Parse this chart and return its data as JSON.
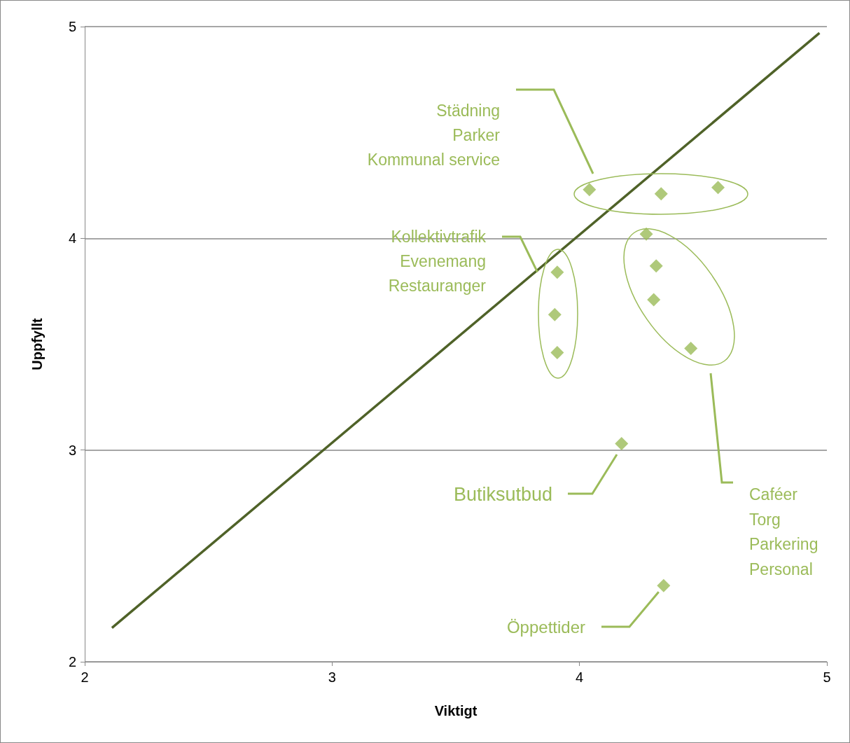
{
  "chart_data": {
    "type": "scatter",
    "xlabel": "Viktigt",
    "ylabel": "Uppfyllt",
    "xlim": [
      2,
      5
    ],
    "xticks": [
      2,
      3,
      4,
      5
    ],
    "ylim": [
      2,
      5
    ],
    "yticks": [
      2,
      3,
      4,
      5
    ],
    "grid": "y",
    "marker": "diamond",
    "series": [
      {
        "color": "#9bbb59",
        "x": [
          4.04,
          4.33,
          4.56,
          4.27,
          4.31,
          4.3,
          4.45,
          3.91,
          3.9,
          3.91,
          4.17,
          4.34
        ],
        "values": [
          4.23,
          4.21,
          4.24,
          4.02,
          3.87,
          3.71,
          3.48,
          3.84,
          3.64,
          3.46,
          3.03,
          2.36
        ]
      },
      {
        "type": "line",
        "color": "#4f6228",
        "marker": "none",
        "x": [
          2.11,
          4.97
        ],
        "values": [
          2.16,
          4.97
        ]
      }
    ],
    "annotations": [
      "Städning\nParker\nKommunal service",
      {
        "text": "Kollektivtrafik\nEvenemang\nRestauranger",
        "x": 3.83,
        "y": 3.84
      },
      "Caféer\nTorg\nParkering\nPersonal",
      "Butiksutbud",
      {
        "text": "Öppettider",
        "x": 4.32,
        "y": 2.33
      }
    ]
  }
}
